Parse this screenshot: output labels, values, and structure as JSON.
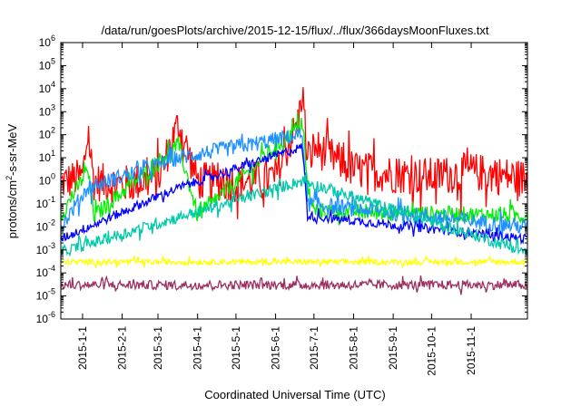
{
  "chart_data": {
    "type": "line",
    "title": "/data/run/goesPlots/archive/2015-12-15/flux/../flux/366daysMoonFluxes.txt",
    "xlabel": "Coordinated Universal Time (UTC)",
    "ylabel_main": "protons/cm",
    "ylabel_sup": "2",
    "ylabel_tail": "-s-sr-MeV",
    "yscale": "log",
    "ylim": [
      1e-06,
      1000000.0
    ],
    "xlim": [
      "2014-12-15",
      "2015-12-15"
    ],
    "y_ticks": [
      {
        "exp": "-6",
        "v": -6
      },
      {
        "exp": "-5",
        "v": -5
      },
      {
        "exp": "-4",
        "v": -4
      },
      {
        "exp": "-3",
        "v": -3
      },
      {
        "exp": "-2",
        "v": -2
      },
      {
        "exp": "-1",
        "v": -1
      },
      {
        "exp": "0",
        "v": 0
      },
      {
        "exp": "1",
        "v": 1
      },
      {
        "exp": "2",
        "v": 2
      },
      {
        "exp": "3",
        "v": 3
      },
      {
        "exp": "4",
        "v": 4
      },
      {
        "exp": "5",
        "v": 5
      },
      {
        "exp": "6",
        "v": 6
      }
    ],
    "y_tick_base": "10",
    "x_ticks": [
      "2015-1-1",
      "2015-2-1",
      "2015-3-1",
      "2015-4-1",
      "2015-5-1",
      "2015-6-1",
      "2015-7-1",
      "2015-8-1",
      "2015-9-1",
      "2015-10-1",
      "2015-11-1"
    ],
    "series": [
      {
        "color": "#ff0000",
        "base": 0.3,
        "noise": 0.85,
        "y": [
          {
            "x": "2014-12-15",
            "y": 0.8
          },
          {
            "x": "2015-01-01",
            "y": 1.5
          },
          {
            "x": "2015-01-05",
            "y": 120
          },
          {
            "x": "2015-01-10",
            "y": 0.9
          },
          {
            "x": "2015-02-01",
            "y": 0.7
          },
          {
            "x": "2015-03-01",
            "y": 1.2
          },
          {
            "x": "2015-03-17",
            "y": 300
          },
          {
            "x": "2015-04-01",
            "y": 1.0
          },
          {
            "x": "2015-05-01",
            "y": 0.8
          },
          {
            "x": "2015-06-01",
            "y": 1.5
          },
          {
            "x": "2015-06-19",
            "y": 400
          },
          {
            "x": "2015-06-22",
            "y": 10000
          },
          {
            "x": "2015-06-26",
            "y": 5
          },
          {
            "x": "2015-07-01",
            "y": 30
          },
          {
            "x": "2015-08-01",
            "y": 3
          },
          {
            "x": "2015-09-01",
            "y": 2
          },
          {
            "x": "2015-10-01",
            "y": 1.5
          },
          {
            "x": "2015-11-01",
            "y": 2.5
          },
          {
            "x": "2015-12-15",
            "y": 1.2
          }
        ]
      },
      {
        "color": "#00ee00",
        "base": -1.6,
        "noise": 0.35,
        "y": [
          {
            "x": "2014-12-15",
            "y": 0.03
          },
          {
            "x": "2015-01-05",
            "y": 3
          },
          {
            "x": "2015-01-10",
            "y": 0.03
          },
          {
            "x": "2015-03-17",
            "y": 40
          },
          {
            "x": "2015-04-01",
            "y": 0.03
          },
          {
            "x": "2015-06-22",
            "y": 300
          },
          {
            "x": "2015-06-26",
            "y": 0.5
          },
          {
            "x": "2015-07-01",
            "y": 0.05
          },
          {
            "x": "2015-12-15",
            "y": 0.03
          }
        ]
      },
      {
        "color": "#1e90ff",
        "base": -2.0,
        "noise": 0.35,
        "y": [
          {
            "x": "2014-12-15",
            "y": 0.01
          },
          {
            "x": "2015-01-05",
            "y": 0.5
          },
          {
            "x": "2015-03-17",
            "y": 10
          },
          {
            "x": "2015-06-22",
            "y": 100
          },
          {
            "x": "2015-06-26",
            "y": 0.1
          },
          {
            "x": "2015-12-15",
            "y": 0.01
          }
        ]
      },
      {
        "color": "#0000ff",
        "base": -2.55,
        "noise": 0.2,
        "y": [
          {
            "x": "2014-12-15",
            "y": 0.003
          },
          {
            "x": "2015-03-17",
            "y": 0.5
          },
          {
            "x": "2015-06-22",
            "y": 30
          },
          {
            "x": "2015-06-26",
            "y": 0.03
          },
          {
            "x": "2015-12-15",
            "y": 0.003
          }
        ]
      },
      {
        "color": "#00c8a8",
        "base": -3.1,
        "noise": 0.25,
        "y": [
          {
            "x": "2014-12-15",
            "y": 0.0008
          },
          {
            "x": "2015-06-22",
            "y": 1
          },
          {
            "x": "2015-12-15",
            "y": 0.0008
          }
        ]
      },
      {
        "color": "#ffff00",
        "base": -3.6,
        "noise": 0.12,
        "y": [
          {
            "x": "2014-12-15",
            "y": 0.0003
          },
          {
            "x": "2015-12-15",
            "y": 0.0003
          }
        ]
      },
      {
        "color": "#9b3060",
        "base": -4.6,
        "noise": 0.2,
        "y": [
          {
            "x": "2014-12-15",
            "y": 3e-05
          },
          {
            "x": "2015-12-15",
            "y": 3e-05
          }
        ]
      }
    ],
    "grid": false,
    "legend": "none"
  }
}
